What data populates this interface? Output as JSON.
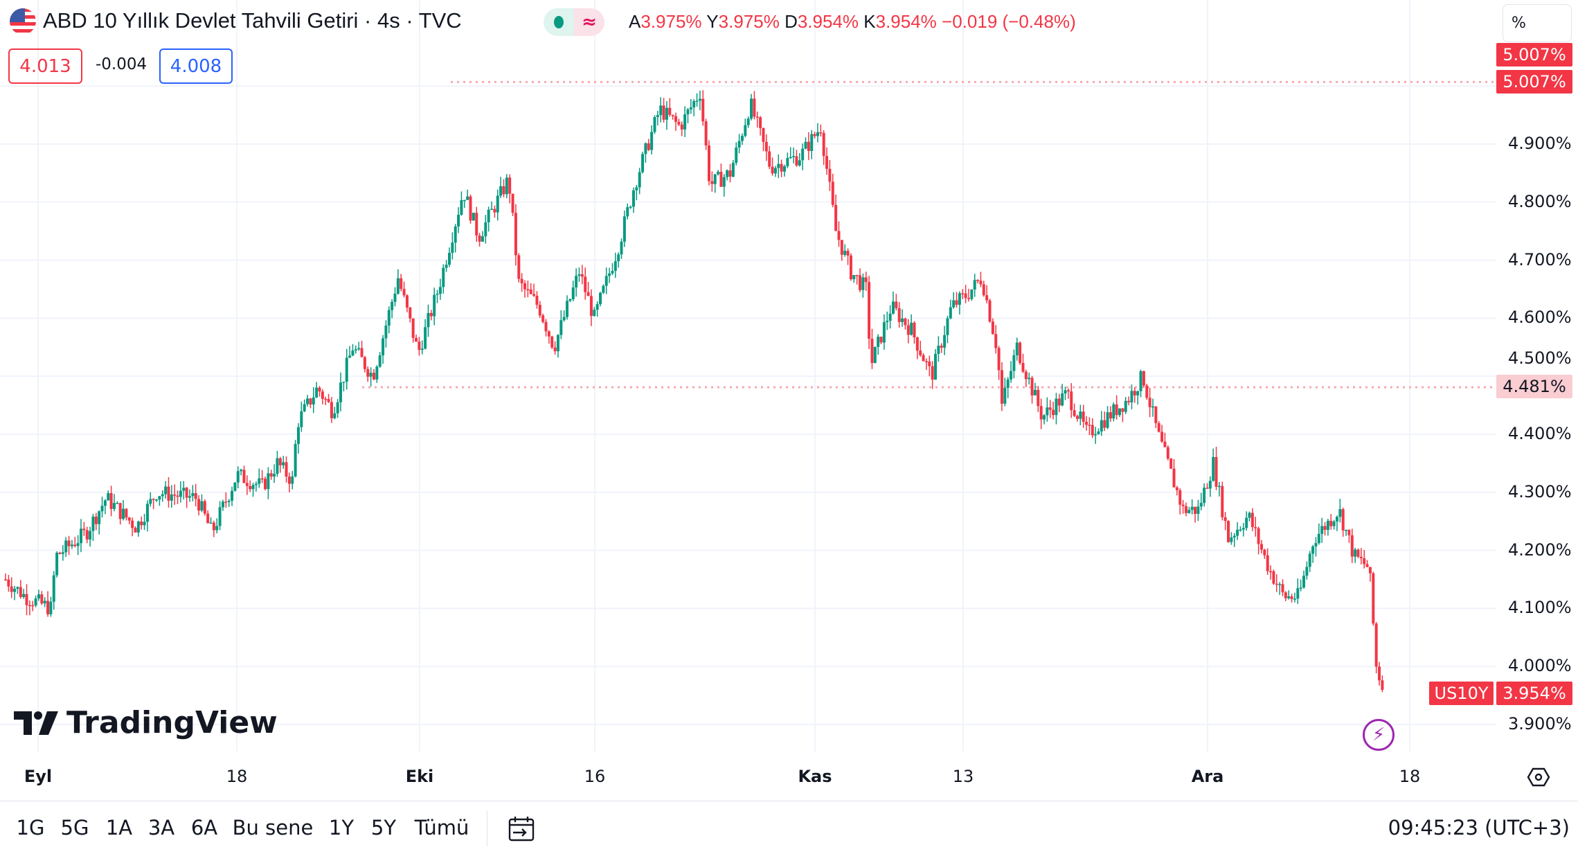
{
  "header": {
    "title": "ABD 10 Yıllık Devlet Tahvili Getiri · 4s · TVC",
    "status_icon": "market-open-dot",
    "delay_icon": "approx-icon",
    "ohlc": [
      {
        "k": "A",
        "v": "3.975%"
      },
      {
        "k": "Y",
        "v": "3.975%"
      },
      {
        "k": "D",
        "v": "3.954%"
      },
      {
        "k": "K",
        "v": "3.954%"
      }
    ],
    "change": "−0.019 (−0.48%)",
    "sell": "4.013",
    "spread": "-0.004",
    "buy": "4.008"
  },
  "axis": {
    "unit": "%",
    "ticks": [
      "4.900%",
      "4.800%",
      "4.700%",
      "4.600%",
      "4.500%",
      "4.400%",
      "4.300%",
      "4.200%",
      "4.100%",
      "4.000%",
      "3.900%"
    ],
    "high_label_1": "5.007%",
    "high_label_2": "5.007%",
    "level_label": "4.481%",
    "symbol": "US10Y",
    "last": "3.954%"
  },
  "xaxis": [
    "Eyl",
    "18",
    "Eki",
    "16",
    "Kas",
    "13",
    "Ara",
    "18"
  ],
  "ranges": [
    "1G",
    "5G",
    "1A",
    "3A",
    "6A",
    "Bu sene",
    "1Y",
    "5Y",
    "Tümü"
  ],
  "clock": "09:45:23 (UTC+3)",
  "logo": "TradingView",
  "colors": {
    "up": "#089981",
    "down": "#f23645"
  },
  "chart_data": {
    "type": "candlestick",
    "ylim": [
      3.85,
      5.05
    ],
    "high": 5.007,
    "level": 4.481,
    "last": 3.954,
    "x_index": [
      0,
      2,
      4.5,
      5,
      8,
      10,
      13,
      15,
      19,
      20.5,
      23,
      25.5,
      27,
      28.5,
      29,
      31,
      32.5,
      34.5,
      36.5,
      39,
      41,
      43,
      45.5,
      47,
      50,
      51,
      53,
      54.5,
      57,
      58.5,
      61,
      62.5,
      65,
      67,
      69,
      70,
      72,
      74,
      76,
      79,
      81,
      82.5,
      84,
      85.5,
      86,
      88,
      90,
      92,
      94,
      95.5,
      97,
      98.5,
      99,
      100.5,
      103,
      105.5,
      107.5,
      109.5,
      111.5,
      113,
      114.5,
      117,
      118.5,
      120,
      121.5,
      123.5,
      125.5,
      127,
      128.5,
      130,
      132.5,
      134,
      135.5,
      136.2,
      137
    ],
    "close": [
      4.15,
      4.12,
      4.1,
      4.19,
      4.23,
      4.29,
      4.24,
      4.3,
      4.29,
      4.23,
      4.33,
      4.31,
      4.35,
      4.32,
      4.42,
      4.48,
      4.44,
      4.55,
      4.5,
      4.67,
      4.54,
      4.65,
      4.82,
      4.74,
      4.84,
      4.66,
      4.62,
      4.55,
      4.68,
      4.6,
      4.73,
      4.83,
      4.96,
      4.93,
      4.99,
      4.83,
      4.85,
      4.97,
      4.86,
      4.88,
      4.93,
      4.75,
      4.68,
      4.65,
      4.52,
      4.62,
      4.58,
      4.5,
      4.62,
      4.64,
      4.67,
      4.55,
      4.45,
      4.55,
      4.43,
      4.47,
      4.4,
      4.43,
      4.46,
      4.5,
      4.4,
      4.27,
      4.27,
      4.35,
      4.22,
      4.26,
      4.17,
      4.12,
      4.12,
      4.22,
      4.27,
      4.19,
      4.17,
      4.0,
      3.954
    ]
  }
}
